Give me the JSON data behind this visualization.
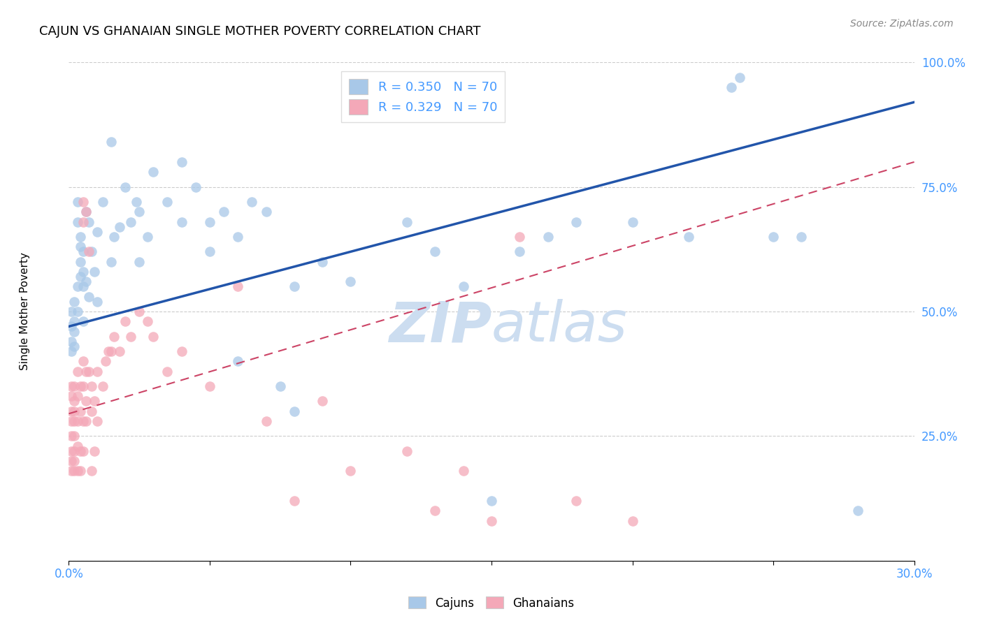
{
  "title": "CAJUN VS GHANAIAN SINGLE MOTHER POVERTY CORRELATION CHART",
  "source": "Source: ZipAtlas.com",
  "ylabel": "Single Mother Poverty",
  "xlim": [
    0.0,
    0.3
  ],
  "ylim": [
    0.0,
    1.0
  ],
  "cajun_R": 0.35,
  "cajun_N": 70,
  "ghanaian_R": 0.329,
  "ghanaian_N": 70,
  "cajun_color": "#a8c8e8",
  "ghanaian_color": "#f4a8b8",
  "trendline_cajun_color": "#2255aa",
  "trendline_ghanaian_color": "#cc4466",
  "watermark_text_color": "#ccddf0",
  "tick_color": "#4499ff",
  "cajun_trend_y0": 0.47,
  "cajun_trend_y1": 0.92,
  "ghanaian_trend_y0": 0.295,
  "ghanaian_trend_y1": 0.8,
  "cajun_points": [
    [
      0.001,
      0.47
    ],
    [
      0.001,
      0.44
    ],
    [
      0.001,
      0.5
    ],
    [
      0.001,
      0.42
    ],
    [
      0.002,
      0.48
    ],
    [
      0.002,
      0.52
    ],
    [
      0.002,
      0.46
    ],
    [
      0.002,
      0.43
    ],
    [
      0.003,
      0.55
    ],
    [
      0.003,
      0.5
    ],
    [
      0.003,
      0.72
    ],
    [
      0.003,
      0.68
    ],
    [
      0.004,
      0.6
    ],
    [
      0.004,
      0.57
    ],
    [
      0.004,
      0.65
    ],
    [
      0.004,
      0.63
    ],
    [
      0.005,
      0.58
    ],
    [
      0.005,
      0.55
    ],
    [
      0.005,
      0.62
    ],
    [
      0.005,
      0.48
    ],
    [
      0.006,
      0.56
    ],
    [
      0.006,
      0.7
    ],
    [
      0.007,
      0.53
    ],
    [
      0.007,
      0.68
    ],
    [
      0.008,
      0.62
    ],
    [
      0.009,
      0.58
    ],
    [
      0.01,
      0.66
    ],
    [
      0.01,
      0.52
    ],
    [
      0.012,
      0.72
    ],
    [
      0.015,
      0.84
    ],
    [
      0.015,
      0.6
    ],
    [
      0.016,
      0.65
    ],
    [
      0.018,
      0.67
    ],
    [
      0.02,
      0.75
    ],
    [
      0.022,
      0.68
    ],
    [
      0.024,
      0.72
    ],
    [
      0.025,
      0.6
    ],
    [
      0.025,
      0.7
    ],
    [
      0.028,
      0.65
    ],
    [
      0.03,
      0.78
    ],
    [
      0.035,
      0.72
    ],
    [
      0.04,
      0.68
    ],
    [
      0.04,
      0.8
    ],
    [
      0.045,
      0.75
    ],
    [
      0.05,
      0.68
    ],
    [
      0.05,
      0.62
    ],
    [
      0.055,
      0.7
    ],
    [
      0.06,
      0.65
    ],
    [
      0.065,
      0.72
    ],
    [
      0.07,
      0.7
    ],
    [
      0.075,
      0.35
    ],
    [
      0.08,
      0.55
    ],
    [
      0.09,
      0.6
    ],
    [
      0.1,
      0.56
    ],
    [
      0.12,
      0.68
    ],
    [
      0.13,
      0.62
    ],
    [
      0.14,
      0.55
    ],
    [
      0.15,
      0.12
    ],
    [
      0.16,
      0.62
    ],
    [
      0.17,
      0.65
    ],
    [
      0.18,
      0.68
    ],
    [
      0.2,
      0.68
    ],
    [
      0.22,
      0.65
    ],
    [
      0.235,
      0.95
    ],
    [
      0.238,
      0.97
    ],
    [
      0.25,
      0.65
    ],
    [
      0.26,
      0.65
    ],
    [
      0.08,
      0.3
    ],
    [
      0.06,
      0.4
    ],
    [
      0.28,
      0.1
    ]
  ],
  "ghanaian_points": [
    [
      0.001,
      0.3
    ],
    [
      0.001,
      0.28
    ],
    [
      0.001,
      0.33
    ],
    [
      0.001,
      0.35
    ],
    [
      0.001,
      0.25
    ],
    [
      0.001,
      0.22
    ],
    [
      0.001,
      0.2
    ],
    [
      0.001,
      0.18
    ],
    [
      0.002,
      0.32
    ],
    [
      0.002,
      0.3
    ],
    [
      0.002,
      0.28
    ],
    [
      0.002,
      0.35
    ],
    [
      0.002,
      0.22
    ],
    [
      0.002,
      0.2
    ],
    [
      0.002,
      0.18
    ],
    [
      0.002,
      0.25
    ],
    [
      0.003,
      0.38
    ],
    [
      0.003,
      0.33
    ],
    [
      0.003,
      0.28
    ],
    [
      0.003,
      0.23
    ],
    [
      0.003,
      0.18
    ],
    [
      0.004,
      0.35
    ],
    [
      0.004,
      0.3
    ],
    [
      0.004,
      0.22
    ],
    [
      0.004,
      0.18
    ],
    [
      0.005,
      0.4
    ],
    [
      0.005,
      0.35
    ],
    [
      0.005,
      0.28
    ],
    [
      0.005,
      0.22
    ],
    [
      0.005,
      0.68
    ],
    [
      0.005,
      0.72
    ],
    [
      0.006,
      0.38
    ],
    [
      0.006,
      0.32
    ],
    [
      0.006,
      0.28
    ],
    [
      0.006,
      0.7
    ],
    [
      0.007,
      0.62
    ],
    [
      0.007,
      0.38
    ],
    [
      0.008,
      0.35
    ],
    [
      0.008,
      0.3
    ],
    [
      0.008,
      0.18
    ],
    [
      0.009,
      0.32
    ],
    [
      0.009,
      0.22
    ],
    [
      0.01,
      0.38
    ],
    [
      0.01,
      0.28
    ],
    [
      0.012,
      0.35
    ],
    [
      0.013,
      0.4
    ],
    [
      0.014,
      0.42
    ],
    [
      0.015,
      0.42
    ],
    [
      0.016,
      0.45
    ],
    [
      0.018,
      0.42
    ],
    [
      0.02,
      0.48
    ],
    [
      0.022,
      0.45
    ],
    [
      0.025,
      0.5
    ],
    [
      0.028,
      0.48
    ],
    [
      0.03,
      0.45
    ],
    [
      0.035,
      0.38
    ],
    [
      0.04,
      0.42
    ],
    [
      0.05,
      0.35
    ],
    [
      0.06,
      0.55
    ],
    [
      0.07,
      0.28
    ],
    [
      0.08,
      0.12
    ],
    [
      0.09,
      0.32
    ],
    [
      0.1,
      0.18
    ],
    [
      0.12,
      0.22
    ],
    [
      0.13,
      0.1
    ],
    [
      0.14,
      0.18
    ],
    [
      0.15,
      0.08
    ],
    [
      0.16,
      0.65
    ],
    [
      0.18,
      0.12
    ],
    [
      0.2,
      0.08
    ]
  ]
}
